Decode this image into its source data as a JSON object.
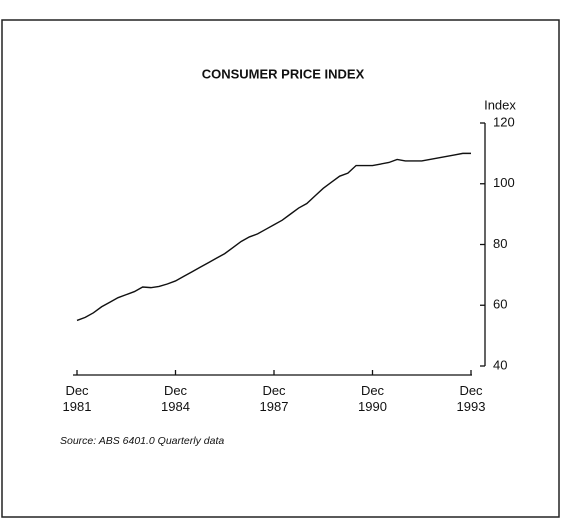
{
  "chart_data": {
    "type": "line",
    "title": "CONSUMER PRICE INDEX",
    "y_label": "Index",
    "source": "Source: ABS 6401.0 Quarterly data",
    "x": [
      "1981-12",
      "1982-03",
      "1982-06",
      "1982-09",
      "1982-12",
      "1983-03",
      "1983-06",
      "1983-09",
      "1983-12",
      "1984-03",
      "1984-06",
      "1984-09",
      "1984-12",
      "1985-03",
      "1985-06",
      "1985-09",
      "1985-12",
      "1986-03",
      "1986-06",
      "1986-09",
      "1986-12",
      "1987-03",
      "1987-06",
      "1987-09",
      "1987-12",
      "1988-03",
      "1988-06",
      "1988-09",
      "1988-12",
      "1989-03",
      "1989-06",
      "1989-09",
      "1989-12",
      "1990-03",
      "1990-06",
      "1990-09",
      "1990-12",
      "1991-03",
      "1991-06",
      "1991-09",
      "1991-12",
      "1992-03",
      "1992-06",
      "1992-09",
      "1992-12",
      "1993-03",
      "1993-06",
      "1993-09",
      "1993-12"
    ],
    "series": [
      {
        "name": "CPI",
        "color": "#111111",
        "values": [
          55,
          56,
          57.5,
          59.5,
          61,
          62.5,
          63.5,
          64.5,
          66,
          65.8,
          66.2,
          67,
          68,
          69.5,
          71,
          72.5,
          74,
          75.5,
          77,
          79,
          81,
          82.5,
          83.5,
          85,
          86.5,
          88,
          90,
          92,
          93.5,
          96,
          98.5,
          100.5,
          102.5,
          103.5,
          106,
          106,
          106,
          106.5,
          107,
          108,
          107.5,
          107.5,
          107.5,
          108,
          108.5,
          109,
          109.5,
          110,
          110
        ]
      }
    ],
    "xlim": [
      "1981-12",
      "1993-12"
    ],
    "xticks": [
      {
        "value": "1981-12",
        "label": "Dec 1981"
      },
      {
        "value": "1984-12",
        "label": "Dec 1984"
      },
      {
        "value": "1987-12",
        "label": "Dec 1987"
      },
      {
        "value": "1990-12",
        "label": "Dec 1990"
      },
      {
        "value": "1993-12",
        "label": "Dec 1993"
      }
    ],
    "ylim": [
      40,
      120
    ],
    "yticks": [
      40,
      60,
      80,
      100,
      120
    ],
    "grid": false
  }
}
